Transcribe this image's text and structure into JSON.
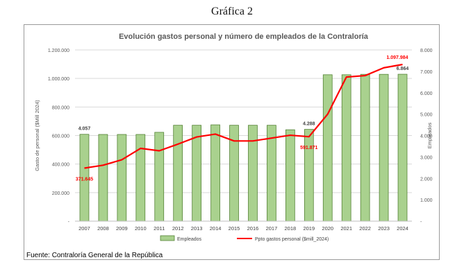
{
  "caption": "Gráfica 2",
  "source_note": "Fuente: Contraloría General de la República",
  "chart_data": {
    "type": "bar+line",
    "title": "Evolución gastos personal y número de empleados de la Contraloría",
    "categories": [
      "2007",
      "2008",
      "2009",
      "2010",
      "2011",
      "2012",
      "2013",
      "2014",
      "2015",
      "2016",
      "2017",
      "2018",
      "2019",
      "2020",
      "2021",
      "2022",
      "2023",
      "2024"
    ],
    "ylabel_left": "Gasto de personal ($Mill 2024)",
    "ylabel_right": "Empleados",
    "ylim_left": [
      0,
      1200000
    ],
    "ylim_right": [
      0,
      8000
    ],
    "left_ticks": [
      "-",
      "200.000",
      "400.000",
      "600.000",
      "800.000",
      "1.000.000",
      "1.200.000"
    ],
    "right_ticks": [
      "-",
      "1.000",
      "2.000",
      "3.000",
      "4.000",
      "5.000",
      "6.000",
      "7.000",
      "8.000"
    ],
    "series": [
      {
        "name": "Empleados",
        "kind": "bar",
        "axis": "right",
        "color": "#a9d18e",
        "border": "#548235",
        "values": [
          4057,
          4050,
          4050,
          4050,
          4150,
          4480,
          4480,
          4500,
          4480,
          4480,
          4480,
          4270,
          4288,
          6840,
          6840,
          6860,
          6860,
          6864
        ]
      },
      {
        "name": "Ppto gastos personal ($mill_2024)",
        "kind": "line",
        "axis": "left",
        "color": "#ff0000",
        "values": [
          371645,
          392000,
          430000,
          510000,
          493000,
          540000,
          590000,
          610000,
          562000,
          562000,
          582000,
          602000,
          591871,
          750000,
          1010000,
          1020000,
          1075000,
          1097984
        ]
      }
    ],
    "data_labels": [
      {
        "series": "Empleados",
        "category": "2007",
        "text": "4.057",
        "color": "#404040"
      },
      {
        "series": "Empleados",
        "category": "2019",
        "text": "4.288",
        "color": "#404040"
      },
      {
        "series": "Empleados",
        "category": "2024",
        "text": "6.864",
        "color": "#404040"
      },
      {
        "series": "Ppto gastos personal ($mill_2024)",
        "category": "2007",
        "text": "371.645",
        "color": "#ff0000"
      },
      {
        "series": "Ppto gastos personal ($mill_2024)",
        "category": "2019",
        "text": "591.871",
        "color": "#ff0000"
      },
      {
        "series": "Ppto gastos personal ($mill_2024)",
        "category": "2024",
        "text": "1.097.984",
        "color": "#ff0000"
      }
    ],
    "grid": true,
    "legend_position": "bottom"
  }
}
